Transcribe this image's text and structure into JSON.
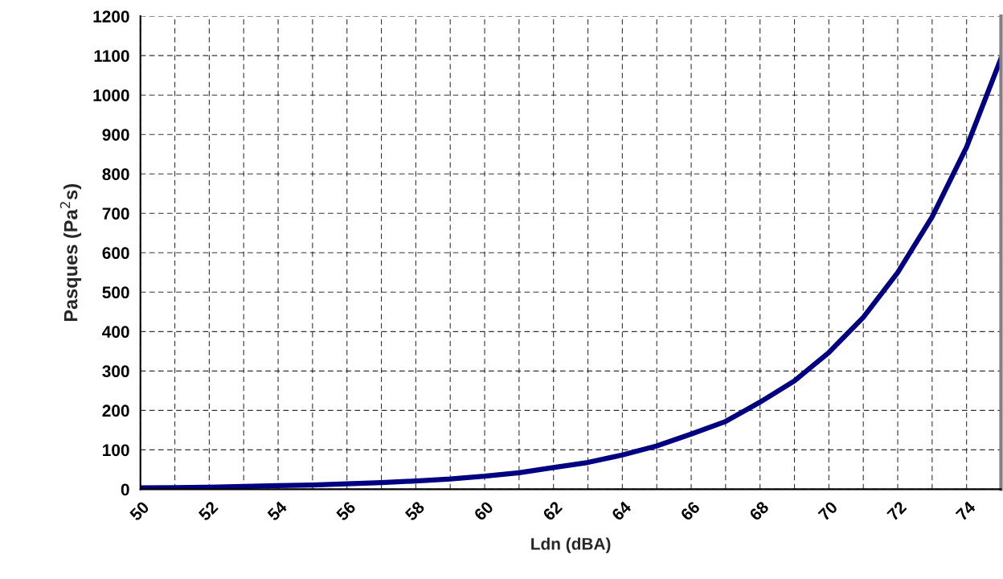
{
  "chart_data": {
    "type": "line",
    "xlabel": "Ldn (dBA)",
    "ylabel": "Pasques (Pa$^{2}$s)",
    "x": [
      50,
      51,
      52,
      53,
      54,
      55,
      56,
      57,
      58,
      59,
      60,
      61,
      62,
      63,
      64,
      65,
      66,
      67,
      68,
      69,
      70,
      71,
      72,
      73,
      74,
      75
    ],
    "series": [
      {
        "color": "#000080",
        "values": [
          3.4,
          4.3,
          5.4,
          7,
          9,
          11,
          14,
          17,
          21,
          26,
          33,
          42,
          55,
          68,
          87,
          110,
          140,
          172,
          221,
          275,
          347,
          436,
          550,
          691,
          868,
          1093
        ]
      }
    ],
    "xlim": [
      50,
      75
    ],
    "xticks": [
      50,
      {
        "value": 51,
        "label": null
      },
      52,
      {
        "value": 53,
        "label": null
      },
      54,
      {
        "value": 55,
        "label": null
      },
      56,
      {
        "value": 57,
        "label": null
      },
      58,
      {
        "value": 59,
        "label": null
      },
      60,
      {
        "value": 61,
        "label": null
      },
      62,
      {
        "value": 63,
        "label": null
      },
      64,
      {
        "value": 65,
        "label": null
      },
      66,
      {
        "value": 67,
        "label": null
      },
      68,
      {
        "value": 69,
        "label": null
      },
      70,
      {
        "value": 71,
        "label": null
      },
      72,
      {
        "value": 73,
        "label": null
      },
      74,
      {
        "value": 75,
        "label": null
      }
    ],
    "ylim": [
      0,
      1200
    ],
    "yticks": [
      0,
      100,
      200,
      300,
      400,
      500,
      600,
      700,
      800,
      900,
      1000,
      1100,
      1200
    ],
    "grid": true,
    "marker": "none",
    "line_style": "solid"
  }
}
